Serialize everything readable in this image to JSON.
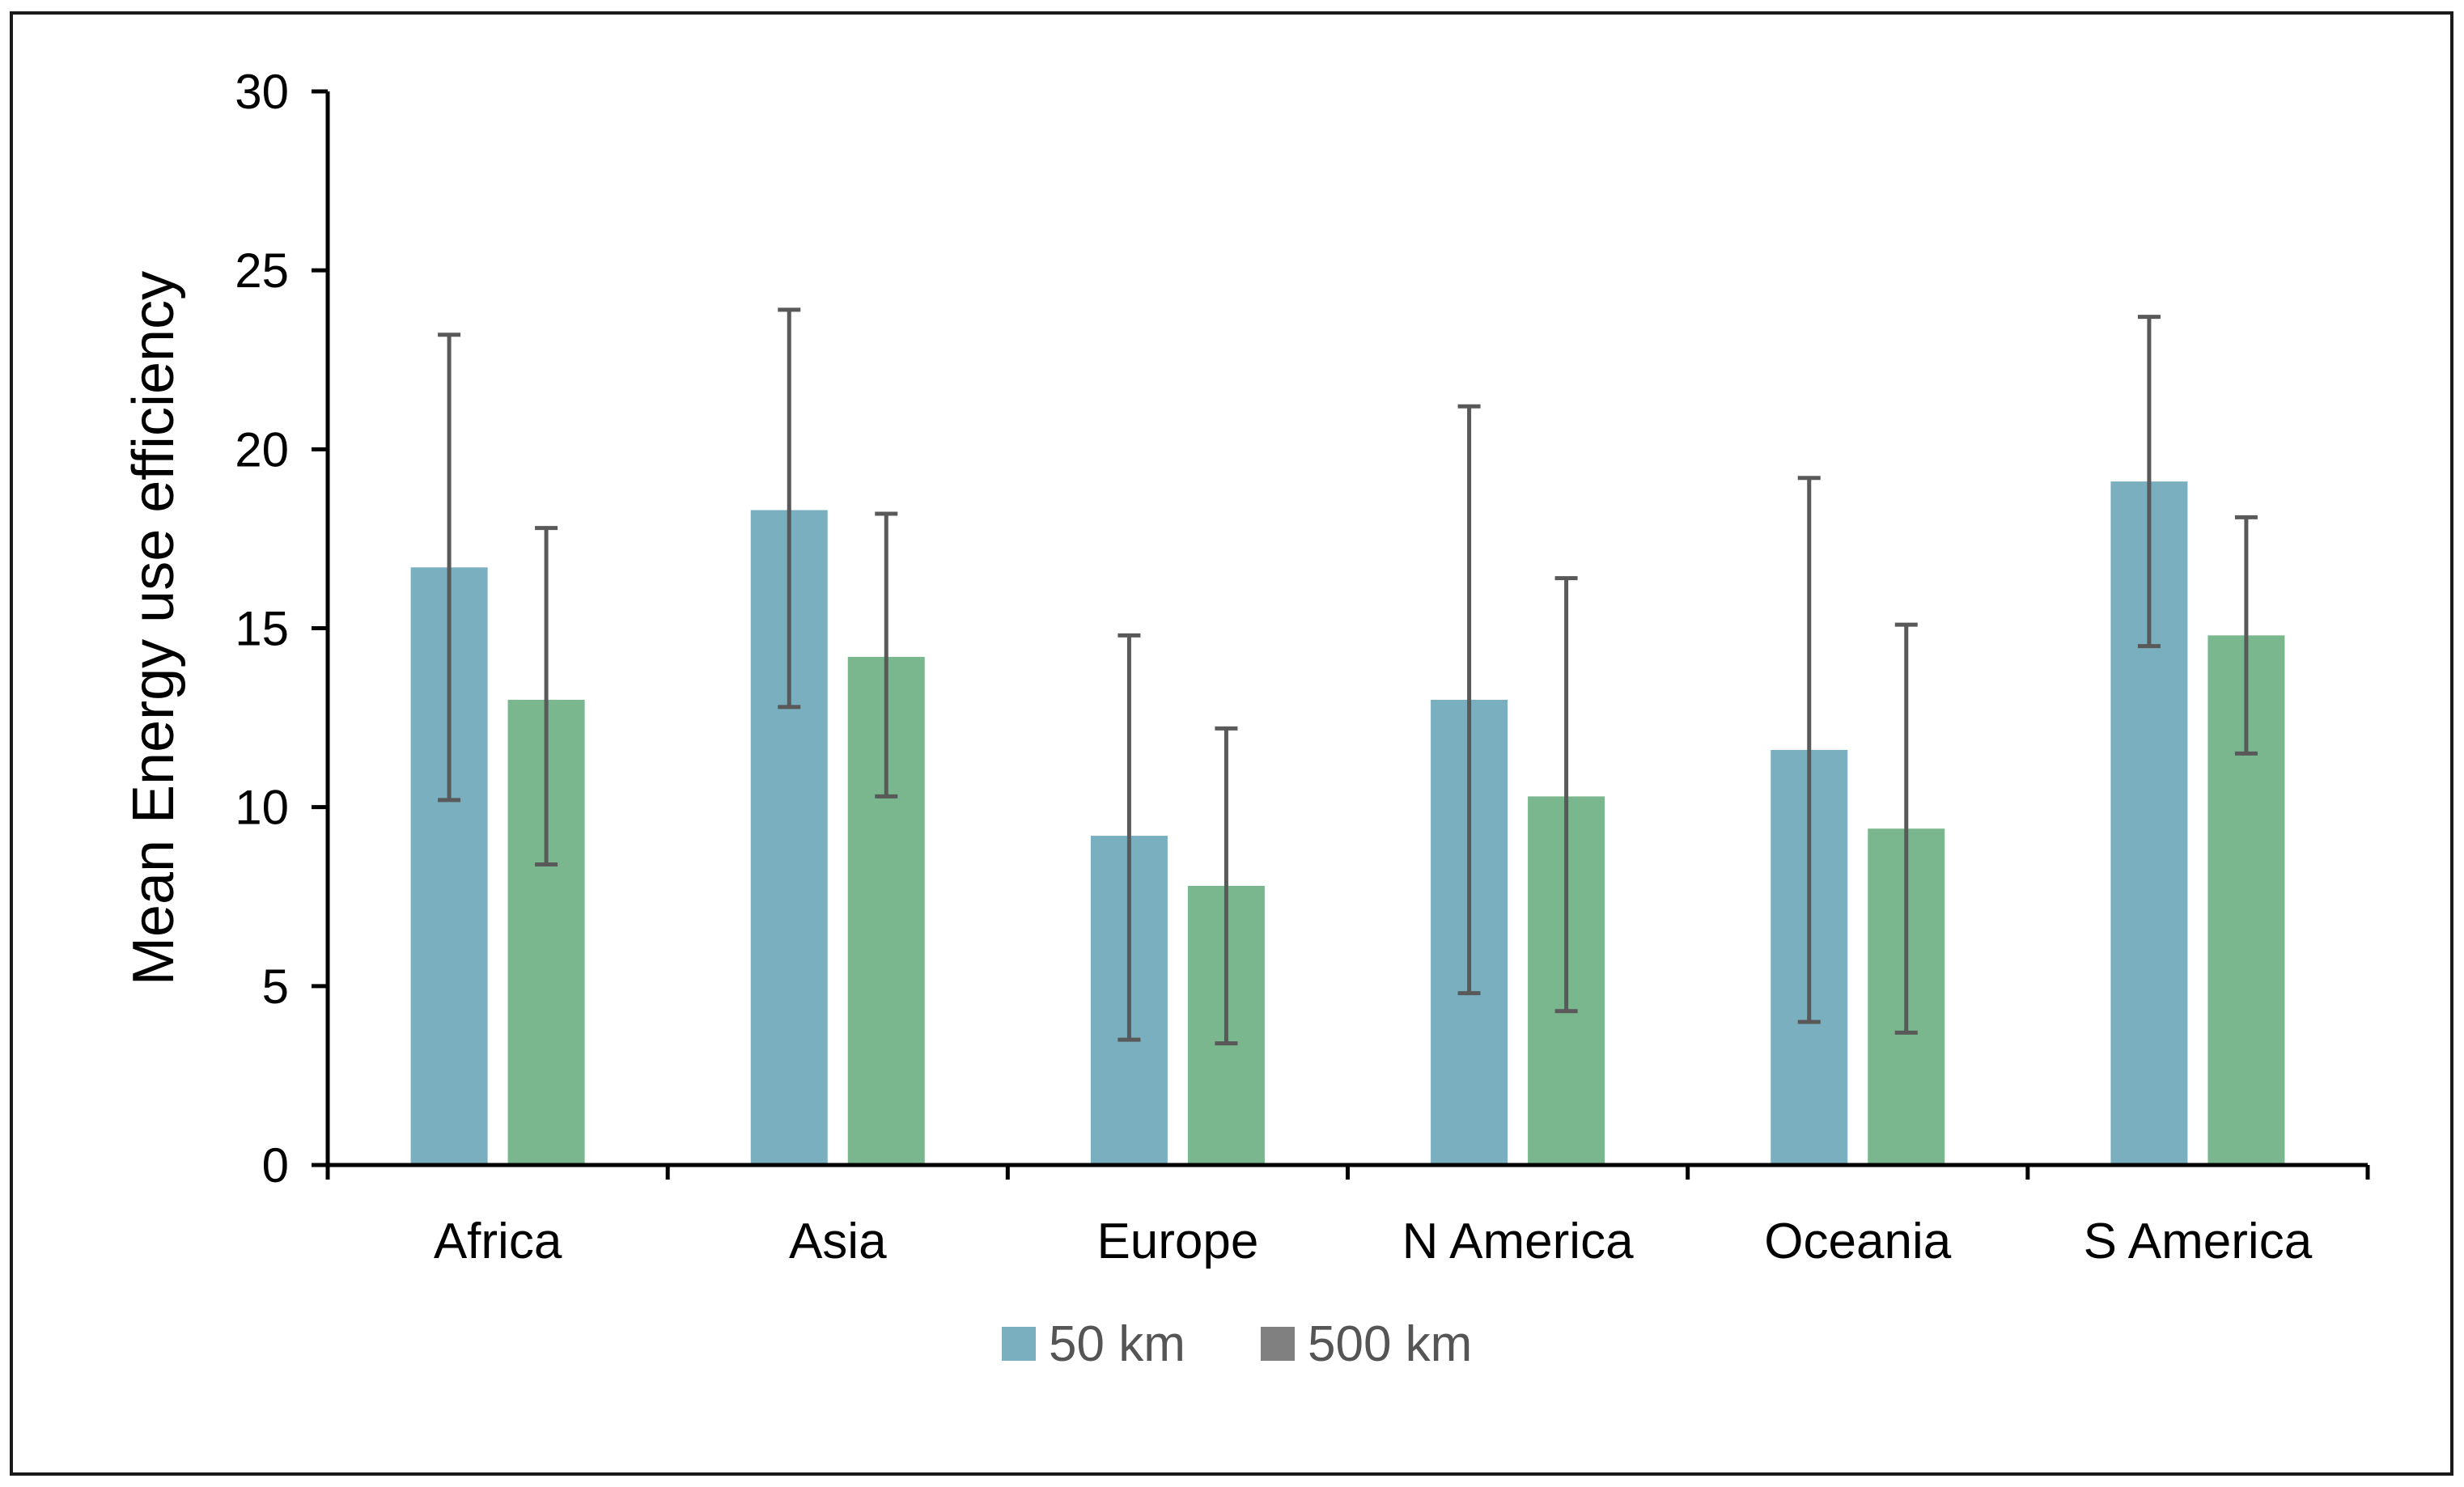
{
  "chart_data": {
    "type": "bar",
    "title": "",
    "xlabel": "",
    "ylabel": "Mean Energy use efficiency",
    "ylim": [
      0,
      30
    ],
    "yticks": [
      "0",
      "5",
      "10",
      "15",
      "20",
      "25",
      "30"
    ],
    "categories": [
      "Africa",
      "Asia",
      "Europe",
      "N America",
      "Oceania",
      "S America"
    ],
    "series": [
      {
        "name": "50 km",
        "legend_label": "50 km",
        "color": "#7aafc0",
        "legend_color": "#7aafc0",
        "values": [
          16.7,
          18.3,
          9.2,
          13.0,
          11.6,
          19.1
        ],
        "err_low": [
          10.2,
          12.8,
          3.5,
          4.8,
          4.0,
          14.5
        ],
        "err_high": [
          23.2,
          23.9,
          14.8,
          21.2,
          19.2,
          23.7
        ]
      },
      {
        "name": "500 km",
        "legend_label": "500 km",
        "color": "#7ab78e",
        "legend_color": "#808080",
        "values": [
          13.0,
          14.2,
          7.8,
          10.3,
          9.4,
          14.8
        ],
        "err_low": [
          8.4,
          10.3,
          3.4,
          4.3,
          3.7,
          11.5
        ],
        "err_high": [
          17.8,
          18.2,
          12.2,
          16.4,
          15.1,
          18.1
        ]
      }
    ],
    "error_bar_color": "#595959",
    "axis_color": "#000000",
    "grid": false,
    "legend_position": "bottom-center"
  }
}
